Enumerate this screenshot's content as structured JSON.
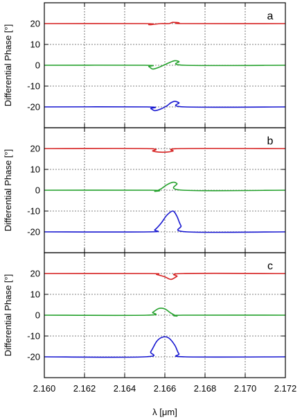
{
  "chart_data": {
    "type": "line",
    "xlabel": "λ [μm]",
    "ylabel": "Differential Phase [°]",
    "xlim": [
      2.16,
      2.172
    ],
    "ylim": [
      -30,
      30
    ],
    "x_ticks": [
      2.16,
      2.162,
      2.164,
      2.166,
      2.168,
      2.17,
      2.172
    ],
    "x_tick_labels": [
      "2.160",
      "2.162",
      "2.164",
      "2.166",
      "2.168",
      "2.170",
      "2.172"
    ],
    "y_ticks": [
      -20,
      -10,
      0,
      10,
      20
    ],
    "y_tick_labels": [
      "-20",
      "-10",
      "0",
      "10",
      "20"
    ],
    "grid": true,
    "series_colors": [
      "#d62020",
      "#22a02a",
      "#1515d0"
    ],
    "panels": [
      {
        "label": "a",
        "series": [
          {
            "color": "#d62020",
            "x": [
              2.16,
              2.165,
              2.1652,
              2.1654,
              2.1658,
              2.1662,
              2.1664,
              2.1667,
              2.167,
              2.172
            ],
            "y": [
              20,
              20,
              19.5,
              19.6,
              20,
              20,
              20.6,
              20.4,
              20,
              20
            ]
          },
          {
            "color": "#22a02a",
            "x": [
              2.16,
              2.165,
              2.1652,
              2.1654,
              2.1657,
              2.166,
              2.1663,
              2.1665,
              2.1667,
              2.167,
              2.172
            ],
            "y": [
              0,
              0,
              -0.6,
              -1.8,
              -1.0,
              0.3,
              1.6,
              2.2,
              1.8,
              0,
              0
            ]
          },
          {
            "color": "#1515d0",
            "x": [
              2.16,
              2.1651,
              2.1653,
              2.1655,
              2.1658,
              2.1661,
              2.1663,
              2.1665,
              2.1667,
              2.167,
              2.172
            ],
            "y": [
              -20,
              -20,
              -20.8,
              -21.8,
              -21.0,
              -19.5,
              -18.0,
              -17.3,
              -18.0,
              -20,
              -20
            ]
          }
        ]
      },
      {
        "label": "b",
        "series": [
          {
            "color": "#d62020",
            "x": [
              2.16,
              2.1651,
              2.1654,
              2.1657,
              2.1661,
              2.1664,
              2.1668,
              2.172
            ],
            "y": [
              20,
              20,
              18.8,
              18.3,
              18.3,
              18.8,
              20,
              20
            ]
          },
          {
            "color": "#22a02a",
            "x": [
              2.16,
              2.1653,
              2.1655,
              2.1658,
              2.1661,
              2.1664,
              2.1666,
              2.1669,
              2.172
            ],
            "y": [
              0,
              0,
              -0.5,
              0.6,
              2.6,
              3.8,
              3.2,
              0,
              0
            ]
          },
          {
            "color": "#1515d0",
            "x": [
              2.16,
              2.1652,
              2.1655,
              2.1658,
              2.1661,
              2.1664,
              2.1666,
              2.1668,
              2.1671,
              2.172
            ],
            "y": [
              -20,
              -20,
              -19.0,
              -16.0,
              -12.0,
              -10.0,
              -12.5,
              -17.0,
              -20,
              -20
            ]
          }
        ]
      },
      {
        "label": "c",
        "series": [
          {
            "color": "#d62020",
            "x": [
              2.16,
              2.1652,
              2.1656,
              2.166,
              2.1663,
              2.1666,
              2.1669,
              2.172
            ],
            "y": [
              20,
              20,
              19.5,
              18.4,
              17.2,
              18.6,
              20,
              20
            ]
          },
          {
            "color": "#22a02a",
            "x": [
              2.16,
              2.1651,
              2.1654,
              2.1657,
              2.166,
              2.1663,
              2.1666,
              2.1669,
              2.172
            ],
            "y": [
              0,
              0,
              1.4,
              3.2,
              3.0,
              1.0,
              -0.4,
              0,
              0
            ]
          },
          {
            "color": "#1515d0",
            "x": [
              2.16,
              2.165,
              2.1653,
              2.1656,
              2.1659,
              2.1662,
              2.1665,
              2.1667,
              2.167,
              2.172
            ],
            "y": [
              -20,
              -20,
              -17.5,
              -12.5,
              -10.5,
              -11.0,
              -14.5,
              -18.5,
              -20,
              -20
            ]
          }
        ]
      }
    ]
  }
}
